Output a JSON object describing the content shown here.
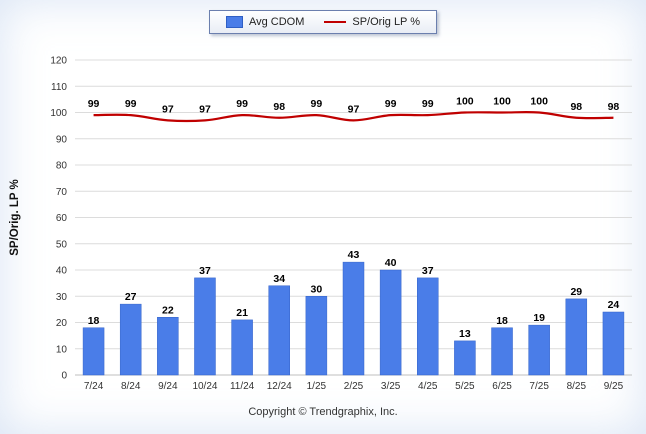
{
  "legend": {
    "items": [
      {
        "label": "Avg CDOM",
        "type": "bar",
        "color": "#4a7de8"
      },
      {
        "label": "SP/Orig LP %",
        "type": "line",
        "color": "#c00000"
      }
    ]
  },
  "footer": {
    "text": "Copyright © Trendgraphix, Inc."
  },
  "chart_data": {
    "type": "combo",
    "categories": [
      "7/24",
      "8/24",
      "9/24",
      "10/24",
      "11/24",
      "12/24",
      "1/25",
      "2/25",
      "3/25",
      "4/25",
      "5/25",
      "6/25",
      "7/25",
      "8/25",
      "9/25"
    ],
    "series": [
      {
        "name": "Avg CDOM",
        "type": "bar",
        "color": "#4a7de8",
        "values": [
          18,
          27,
          22,
          37,
          21,
          34,
          30,
          43,
          40,
          37,
          13,
          18,
          19,
          29,
          24
        ]
      },
      {
        "name": "SP/Orig LP %",
        "type": "line",
        "color": "#c00000",
        "values": [
          99,
          99,
          97,
          97,
          99,
          98,
          99,
          97,
          99,
          99,
          100,
          100,
          100,
          98,
          98
        ]
      }
    ],
    "title": "",
    "xlabel": "",
    "ylabel": "SP/Orig. LP %",
    "ylim": [
      0,
      120
    ],
    "ytick_step": 10,
    "grid": true,
    "legend_position": "top"
  }
}
